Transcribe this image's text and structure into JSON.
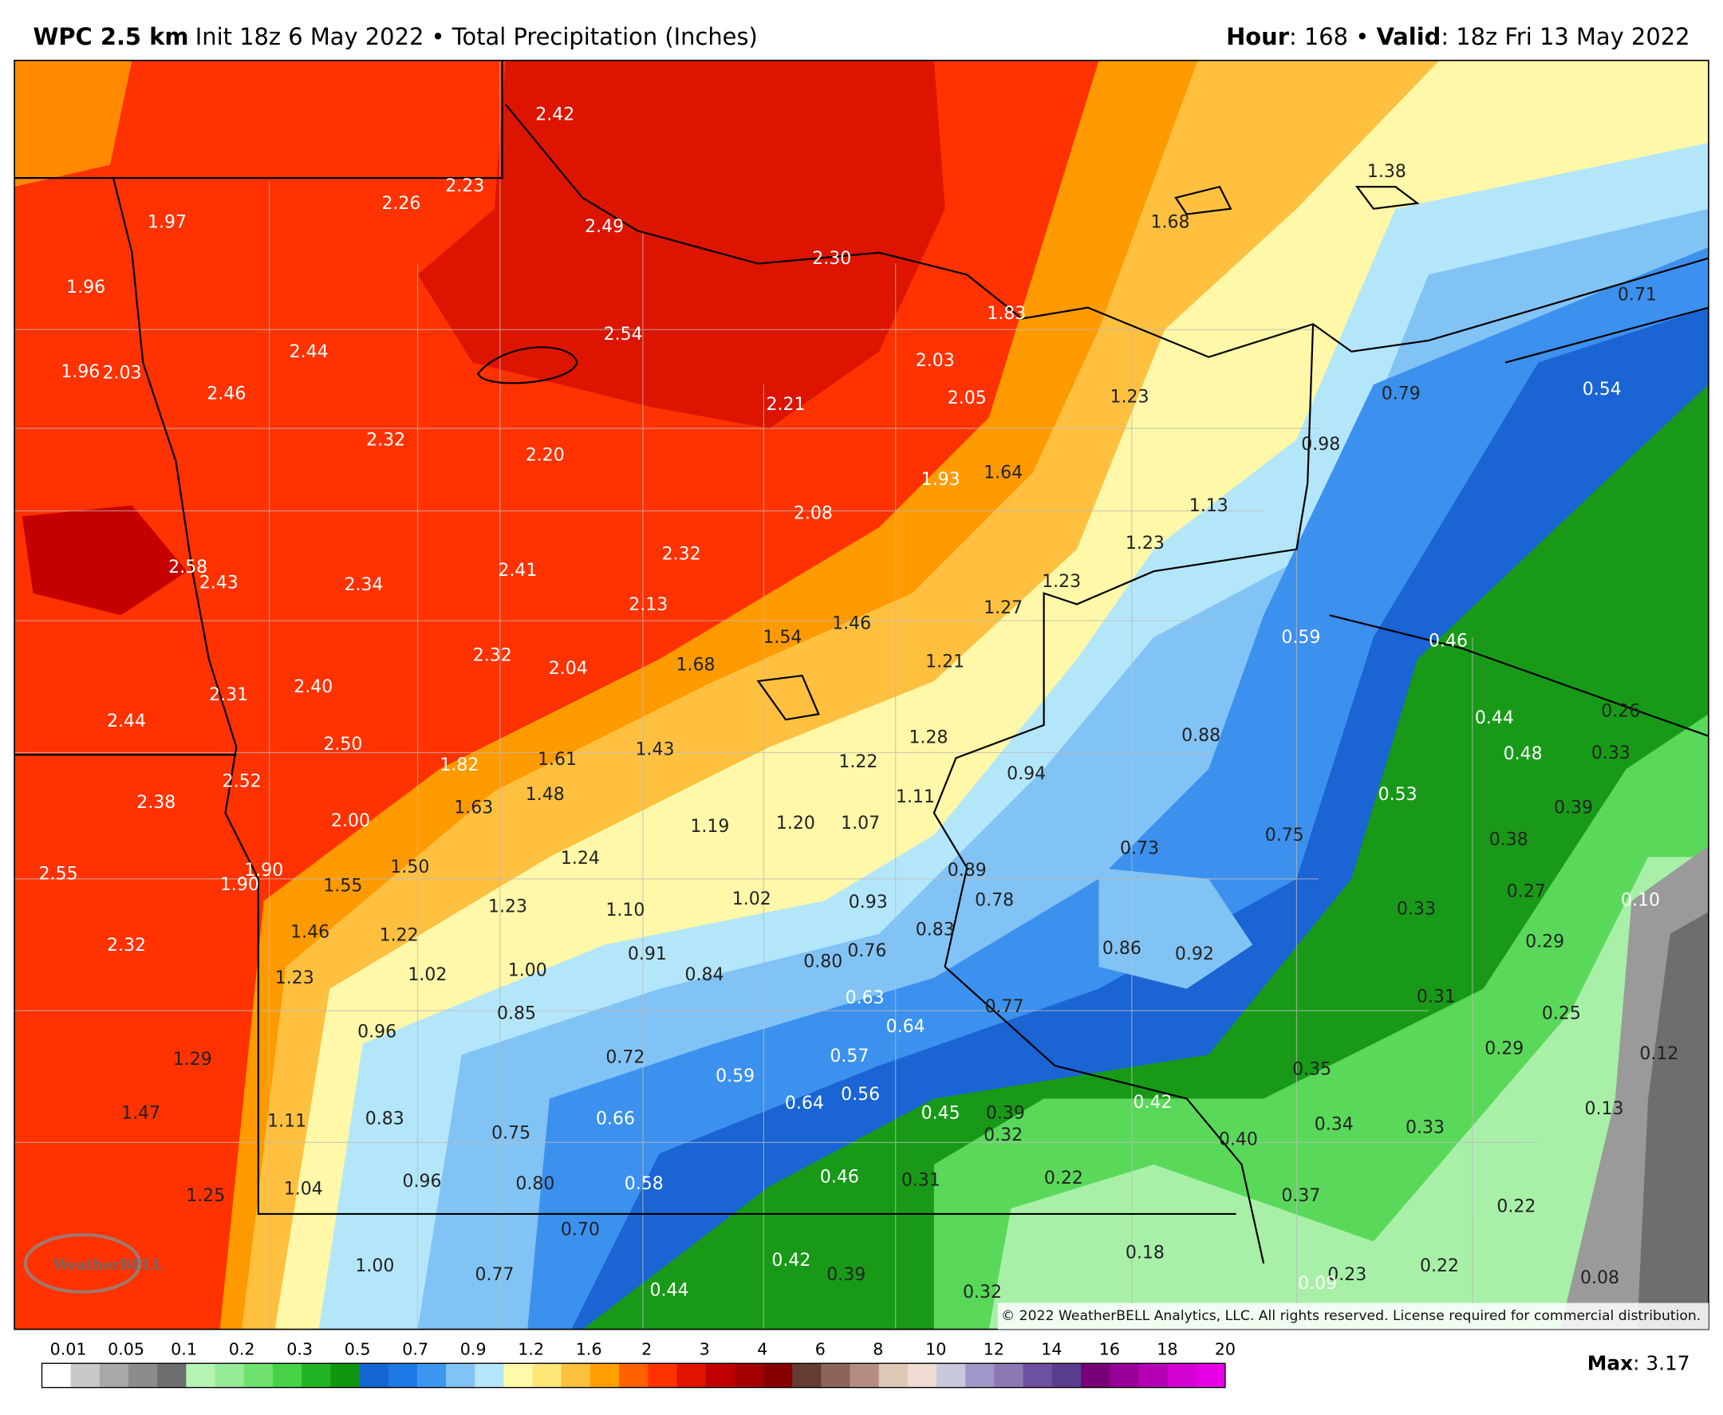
{
  "header": {
    "model": "WPC 2.5 km",
    "subtitle": "Init 18z 6 May 2022 • Total Precipitation (Inches)",
    "hour_label": "Hour",
    "hour_value": ": 168 • ",
    "valid_label": "Valid",
    "valid_value": ": 18z Fri 13 May 2022"
  },
  "points": [
    "2.42",
    "2.23",
    "2.26",
    "1.97",
    "2.49",
    "2.30",
    "1.68",
    "1.38",
    "1.96",
    "1.83",
    "0.71",
    "2.54",
    "2.44",
    "2.03",
    "1.96",
    "2.03",
    "2.46",
    "2.21",
    "2.05",
    "1.23",
    "0.79",
    "0.54",
    "2.32",
    "2.20",
    "1.93",
    "1.64",
    "0.98",
    "2.08",
    "1.13",
    "2.58",
    "2.43",
    "2.34",
    "2.41",
    "2.32",
    "1.23",
    "1.23",
    "2.13",
    "1.27",
    "1.54",
    "1.46",
    "0.59",
    "0.46",
    "2.32",
    "2.04",
    "1.68",
    "1.21",
    "2.31",
    "2.40",
    "2.44",
    "0.44",
    "0.26",
    "1.28",
    "0.88",
    "2.50",
    "1.82",
    "1.61",
    "1.43",
    "1.22",
    "0.48",
    "0.33",
    "2.52",
    "0.94",
    "1.11",
    "2.38",
    "1.63",
    "1.48",
    "0.53",
    "0.39",
    "2.00",
    "1.19",
    "1.20",
    "1.07",
    "0.73",
    "0.75",
    "0.38",
    "1.24",
    "2.55",
    "1.90",
    "1.90",
    "1.55",
    "1.50",
    "0.89",
    "0.27",
    "0.10",
    "1.23",
    "1.10",
    "1.02",
    "0.93",
    "0.78",
    "0.33",
    "2.32",
    "1.46",
    "1.22",
    "0.83",
    "0.29",
    "0.86",
    "0.92",
    "0.91",
    "0.80",
    "0.76",
    "0.84",
    "1.23",
    "1.02",
    "1.00",
    "0.63",
    "0.31",
    "0.77",
    "0.85",
    "0.64",
    "0.25",
    "0.96",
    "0.72",
    "0.59",
    "0.57",
    "0.35",
    "0.29",
    "0.12",
    "1.29",
    "0.42",
    "1.47",
    "1.11",
    "0.83",
    "0.75",
    "0.66",
    "0.64",
    "0.56",
    "0.45",
    "0.39",
    "0.32",
    "0.40",
    "0.34",
    "0.33",
    "0.13",
    "1.25",
    "1.04",
    "0.96",
    "0.80",
    "0.58",
    "0.46",
    "0.31",
    "0.22",
    "0.37",
    "0.22",
    "0.70",
    "0.18",
    "1.00",
    "0.77",
    "0.42",
    "0.39",
    "0.23",
    "0.22",
    "0.44",
    "0.32",
    "0.09",
    "0.08"
  ],
  "copyright": "© 2022 WeatherBELL Analytics, LLC. All rights reserved. License required for commercial distribution.",
  "logo": "WeatherBELL",
  "legend": {
    "ticks": [
      0.01,
      0.05,
      0.1,
      0.2,
      0.3,
      0.5,
      0.7,
      0.9,
      1.2,
      1.6,
      2,
      3,
      4,
      6,
      8,
      10,
      12,
      14,
      16,
      18,
      20
    ],
    "colors": [
      "#ffffff",
      "#c8c8c8",
      "#a8a8a8",
      "#8c8c8c",
      "#6e6e6e",
      "#b4f5b4",
      "#96eb96",
      "#6ee16e",
      "#46d246",
      "#22b422",
      "#109610",
      "#1464d2",
      "#1e78e6",
      "#3c96f0",
      "#82c3f5",
      "#b4e6fa",
      "#fffaaa",
      "#ffe678",
      "#ffc03c",
      "#ffa000",
      "#ff6000",
      "#ff3200",
      "#e11400",
      "#c00000",
      "#a50000",
      "#870000",
      "#643c32",
      "#8c645a",
      "#b48c82",
      "#dcc8b4",
      "#f0dcd2",
      "#c8c8dc",
      "#a096c8",
      "#8c78b4",
      "#6e50a0",
      "#5a3c8c",
      "#780078",
      "#960096",
      "#b400b4",
      "#d200d2",
      "#e600e6"
    ]
  },
  "max_label": "Max",
  "max_value": ": 3.17"
}
